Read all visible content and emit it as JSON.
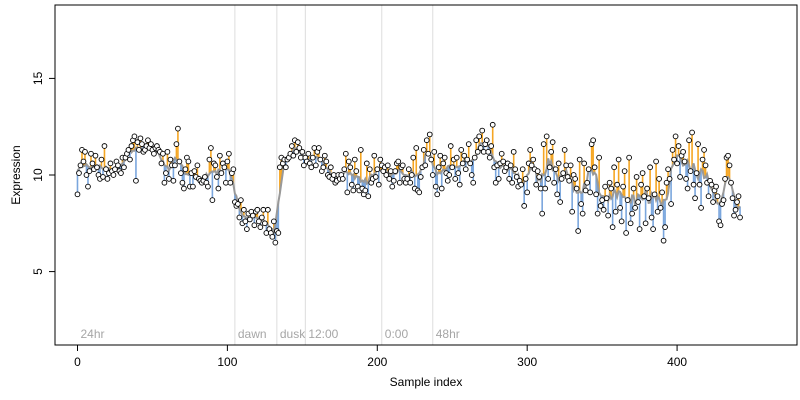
{
  "chart_data": {
    "type": "scatter",
    "title": "",
    "xlabel": "Sample index",
    "ylabel": "Expression",
    "xlim": [
      -15,
      480
    ],
    "ylim": [
      1.2,
      18.8
    ],
    "x_ticks": [
      0,
      100,
      200,
      300,
      400
    ],
    "y_ticks": [
      5,
      10,
      15
    ],
    "grid": false,
    "legend": "none",
    "colors": {
      "trend_line": "#999999",
      "above_segment": "#f5a623",
      "below_segment": "#7aa6dd",
      "point_fill": "#ffffff",
      "point_stroke": "#000000",
      "marker_line": "#dddddd",
      "marker_label": "#a6a6a6"
    },
    "markers": [
      {
        "x": 0,
        "label": "24hr",
        "line": false
      },
      {
        "x": 105,
        "label": "dawn",
        "line": true
      },
      {
        "x": 133,
        "label": "dusk",
        "line": true
      },
      {
        "x": 152,
        "label": "12:00",
        "line": true
      },
      {
        "x": 203,
        "label": "0:00",
        "line": true
      },
      {
        "x": 237,
        "label": "48hr",
        "line": true
      }
    ],
    "series": [
      {
        "x_start": 0,
        "x_step": 1,
        "values": [
          9.0,
          10.1,
          10.5,
          11.3,
          10.7,
          11.2,
          10.0,
          9.4,
          10.2,
          11.1,
          10.6,
          10.3,
          11.0,
          10.4,
          10.0,
          9.8,
          10.8,
          9.9,
          11.5,
          10.3,
          9.8,
          10.1,
          10.6,
          10.2,
          10.0,
          10.3,
          10.7,
          10.5,
          10.2,
          10.1,
          10.9,
          10.4,
          10.9,
          11.1,
          11.3,
          10.8,
          11.5,
          11.8,
          12.0,
          9.7,
          11.7,
          11.3,
          11.9,
          11.6,
          11.2,
          11.3,
          11.5,
          11.8,
          11.4,
          11.6,
          11.3,
          11.1,
          11.4,
          11.5,
          11.3,
          11.2,
          10.6,
          11.1,
          9.6,
          10.1,
          11.2,
          9.8,
          10.8,
          10.5,
          9.7,
          10.5,
          11.6,
          12.4,
          10.7,
          10.1,
          9.6,
          9.3,
          10.3,
          10.9,
          10.7,
          9.4,
          10.1,
          9.4,
          10.2,
          9.9,
          10.5,
          9.8,
          9.7,
          9.6,
          9.7,
          9.9,
          9.6,
          9.4,
          10.8,
          11.4,
          8.7,
          10.6,
          10.5,
          9.9,
          9.3,
          11.0,
          10.1,
          10.6,
          10.4,
          9.6,
          10.7,
          11.1,
          9.6,
          10.1,
          10.3,
          8.6,
          8.4,
          8.5,
          7.8,
          8.7,
          7.5,
          8.2,
          7.6,
          7.2,
          8.0,
          7.7,
          8.1,
          7.9,
          7.4,
          8.1,
          8.2,
          7.6,
          7.3,
          7.8,
          8.2,
          7.5,
          7.0,
          8.2,
          7.2,
          7.0,
          6.8,
          7.6,
          6.5,
          7.1,
          7.0,
          10.4,
          10.9,
          10.6,
          10.8,
          10.4,
          10.8,
          10.9,
          11.1,
          11.5,
          11.0,
          11.8,
          11.2,
          11.7,
          11.4,
          10.9,
          11.2,
          10.5,
          10.9,
          10.7,
          11.1,
          10.6,
          10.4,
          10.9,
          11.4,
          10.5,
          11.2,
          11.4,
          10.8,
          10.2,
          10.4,
          11.0,
          10.7,
          10.0,
          9.9,
          10.4,
          9.8,
          10.0,
          9.6,
          9.7,
          10.0,
          9.8,
          10.0,
          9.8,
          10.3,
          11.1,
          9.1,
          10.7,
          10.4,
          9.5,
          9.2,
          10.8,
          10.2,
          9.4,
          9.2,
          11.3,
          9.3,
          9.0,
          9.2,
          10.6,
          8.9,
          10.3,
          9.6,
          9.8,
          11.0,
          9.9,
          10.3,
          9.5,
          10.8,
          10.5,
          10.2,
          10.4,
          10.0,
          10.5,
          9.8,
          10.2,
          9.4,
          9.7,
          10.2,
          10.6,
          10.7,
          9.6,
          10.4,
          10.5,
          9.8,
          9.6,
          9.8,
          10.3,
          9.6,
          10.0,
          10.9,
          9.3,
          11.4,
          9.2,
          9.1,
          9.9,
          10.4,
          11.3,
          10.5,
          11.8,
          11.1,
          12.1,
          10.8,
          10.0,
          11.2,
          9.4,
          9.0,
          10.4,
          11.0,
          9.3,
          10.6,
          10.9,
          10.1,
          9.7,
          10.0,
          11.5,
          10.4,
          10.8,
          9.8,
          10.9,
          10.1,
          9.5,
          11.3,
          10.6,
          11.0,
          10.3,
          10.8,
          11.6,
          10.6,
          10.0,
          9.6,
          10.9,
          11.8,
          11.2,
          12.0,
          11.4,
          12.3,
          11.2,
          11.6,
          11.8,
          11.2,
          10.9,
          11.5,
          12.6,
          10.4,
          9.6,
          10.5,
          9.8,
          10.6,
          11.1,
          10.7,
          10.2,
          10.4,
          10.6,
          9.8,
          10.5,
          9.6,
          11.2,
          10.3,
          9.9,
          9.4,
          9.7,
          9.5,
          10.3,
          8.4,
          9.8,
          9.1,
          10.6,
          11.3,
          10.5,
          10.8,
          10.3,
          9.5,
          10.2,
          9.9,
          9.3,
          8.0,
          11.6,
          9.3,
          12.0,
          9.8,
          10.4,
          11.2,
          11.7,
          9.6,
          10.3,
          9.0,
          10.6,
          8.6,
          9.8,
          10.1,
          11.3,
          10.5,
          9.9,
          9.7,
          10.5,
          8.1,
          10.0,
          9.8,
          9.3,
          7.1,
          10.8,
          8.5,
          8.0,
          10.6,
          9.2,
          9.6,
          10.3,
          9.1,
          11.6,
          11.8,
          10.4,
          9.0,
          8.0,
          10.9,
          8.4,
          8.7,
          8.2,
          9.4,
          8.8,
          7.9,
          9.6,
          9.3,
          7.3,
          10.4,
          8.1,
          9.5,
          10.8,
          8.3,
          7.6,
          9.4,
          10.2,
          7.0,
          8.7,
          10.9,
          7.5,
          8.0,
          9.3,
          8.3,
          9.9,
          8.6,
          7.2,
          9.5,
          10.1,
          8.9,
          7.5,
          9.3,
          8.8,
          10.4,
          7.8,
          7.2,
          9.0,
          10.7,
          8.1,
          9.8,
          8.3,
          9.1,
          6.6,
          7.3,
          9.6,
          10.3,
          9.8,
          8.5,
          11.3,
          10.8,
          12.0,
          10.6,
          11.5,
          9.9,
          11.0,
          11.2,
          10.7,
          9.8,
          9.3,
          11.8,
          10.2,
          12.2,
          9.5,
          8.8,
          10.1,
          11.6,
          9.5,
          8.3,
          10.8,
          11.3,
          10.5,
          9.6,
          8.9,
          9.7,
          9.5,
          8.6,
          9.2,
          9.4,
          8.9,
          7.6,
          7.4,
          8.5,
          8.7,
          9.8,
          10.9,
          11.0,
          10.5,
          9.6,
          8.8,
          7.9,
          8.2,
          8.6,
          8.9,
          7.8
        ]
      }
    ]
  }
}
